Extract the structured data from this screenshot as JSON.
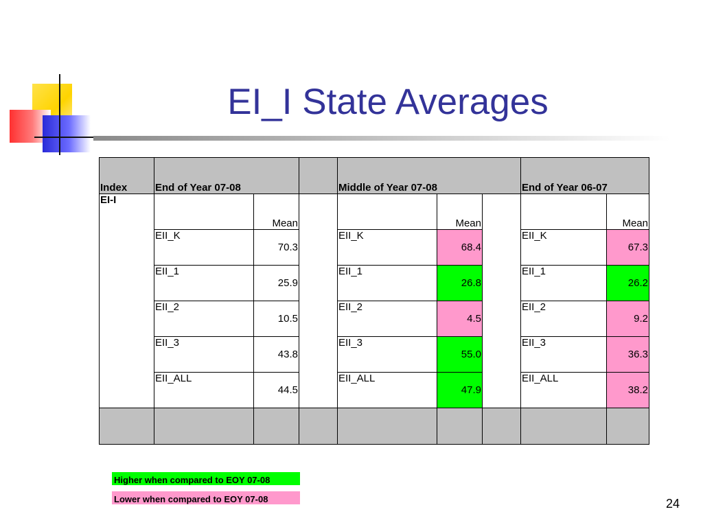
{
  "slide": {
    "title": "EI_I State Averages",
    "page_number": "24"
  },
  "table": {
    "headers": {
      "index": "Index",
      "group1": "End of Year 07-08",
      "group2": "Middle of Year 07-08",
      "group3": "End of Year 06-07"
    },
    "index_value": "EI-I",
    "mean_label": "Mean",
    "rows": [
      {
        "label": "EII_K",
        "eoy0708": "70.3",
        "moy0708": "68.4",
        "eoy0607": "67.3"
      },
      {
        "label": "EII_1",
        "eoy0708": "25.9",
        "moy0708": "26.8",
        "eoy0607": "26.2"
      },
      {
        "label": "EII_2",
        "eoy0708": "10.5",
        "moy0708": "4.5",
        "eoy0607": "9.2"
      },
      {
        "label": "EII_3",
        "eoy0708": "43.8",
        "moy0708": "55.0",
        "eoy0607": "36.3"
      },
      {
        "label": "EII_ALL",
        "eoy0708": "44.5",
        "moy0708": "47.9",
        "eoy0607": "38.2"
      }
    ],
    "highlight_colors": {
      "higher": "#00ff00",
      "lower": "#ff99cc"
    }
  },
  "legend": {
    "higher": "Higher when compared to EOY 07-08",
    "lower": "Lower when compared to EOY 07-08"
  }
}
